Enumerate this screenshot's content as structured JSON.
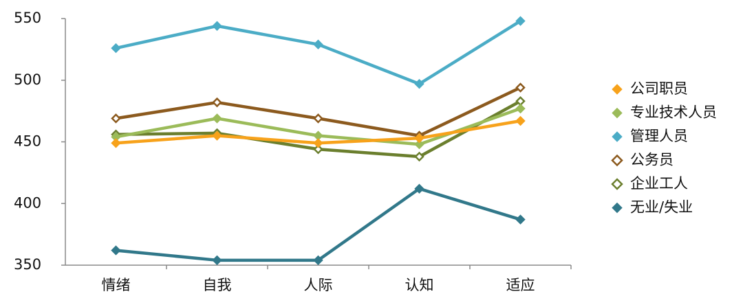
{
  "chart_data": {
    "type": "line",
    "categories": [
      "情绪",
      "自我",
      "人际",
      "认知",
      "适应"
    ],
    "ylim": [
      350,
      550
    ],
    "yticks": [
      350,
      400,
      450,
      500,
      550
    ],
    "legend": "right",
    "series": [
      {
        "name": "公司职员",
        "color": "#f7a21b",
        "marker": "diamond",
        "values": [
          449,
          455,
          449,
          453,
          467
        ]
      },
      {
        "name": "专业技术人员",
        "color": "#9bbb59",
        "marker": "diamond",
        "values": [
          454,
          469,
          455,
          448,
          477
        ]
      },
      {
        "name": "管理人员",
        "color": "#4bacc6",
        "marker": "diamond",
        "values": [
          526,
          544,
          529,
          497,
          548
        ]
      },
      {
        "name": "公务员",
        "color": "#8c5a1e",
        "marker": "diamond-open",
        "values": [
          469,
          482,
          469,
          455,
          494
        ]
      },
      {
        "name": "企业工人",
        "color": "#6b7f2e",
        "marker": "diamond-open",
        "values": [
          456,
          457,
          444,
          438,
          483
        ]
      },
      {
        "name": "无业/失业",
        "color": "#31788a",
        "marker": "diamond",
        "values": [
          362,
          354,
          354,
          412,
          387
        ]
      }
    ]
  }
}
